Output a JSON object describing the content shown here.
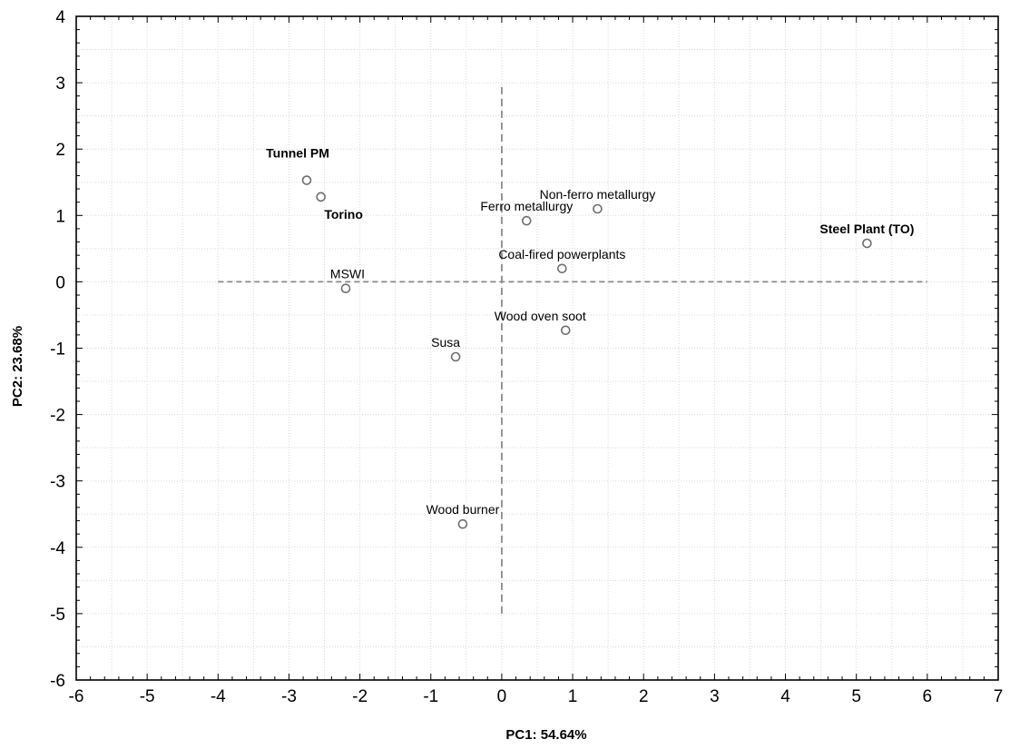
{
  "chart_data": {
    "type": "scatter",
    "title": "",
    "xlabel": "PC1: 54.64%",
    "ylabel": "PC2: 23.68%",
    "xlim": [
      -6,
      7
    ],
    "ylim": [
      -6,
      4
    ],
    "xticks": [
      -6,
      -5,
      -4,
      -3,
      -2,
      -1,
      0,
      1,
      2,
      3,
      4,
      5,
      6,
      7
    ],
    "yticks": [
      -6,
      -5,
      -4,
      -3,
      -2,
      -1,
      0,
      1,
      2,
      3,
      4
    ],
    "grid": true,
    "reference_lines": {
      "horizontal": {
        "y": 0,
        "x_from": -4,
        "x_to": 6,
        "style": "dashed"
      },
      "vertical": {
        "x": 0,
        "y_from": -5,
        "y_to": 3,
        "style": "dashed"
      }
    },
    "points": [
      {
        "label": "Tunnel PM",
        "x": -2.75,
        "y": 1.53,
        "bold": true
      },
      {
        "label": "Torino",
        "x": -2.55,
        "y": 1.28,
        "bold": true
      },
      {
        "label": "MSWI",
        "x": -2.2,
        "y": -0.1,
        "bold": false
      },
      {
        "label": "Susa",
        "x": -0.65,
        "y": -1.13,
        "bold": false
      },
      {
        "label": "Wood burner",
        "x": -0.55,
        "y": -3.65,
        "bold": false
      },
      {
        "label": "Ferro metallurgy",
        "x": 0.35,
        "y": 0.92,
        "bold": false
      },
      {
        "label": "Non-ferro metallurgy",
        "x": 1.35,
        "y": 1.1,
        "bold": false
      },
      {
        "label": "Coal-fired powerplants",
        "x": 0.85,
        "y": 0.2,
        "bold": false
      },
      {
        "label": "Wood oven soot",
        "x": 0.9,
        "y": -0.73,
        "bold": false
      },
      {
        "label": "Steel Plant (TO)",
        "x": 5.15,
        "y": 0.58,
        "bold": true
      }
    ],
    "colors": {
      "marker": "#6e6e6e",
      "dashed": "#8a8a8a",
      "grid": "#d8d8d8"
    }
  }
}
